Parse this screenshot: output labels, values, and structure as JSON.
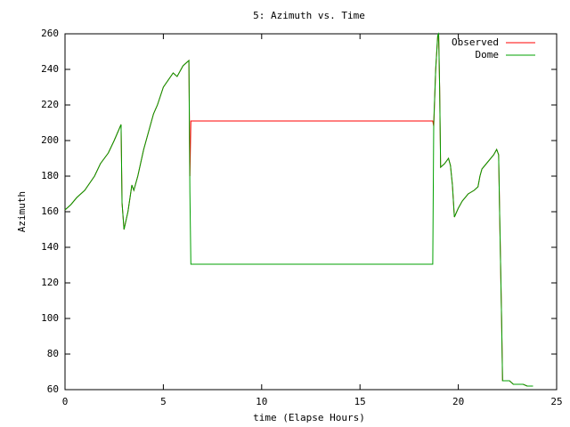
{
  "chart_data": {
    "type": "line",
    "title": "5: Azimuth vs. Time",
    "x_label": "time (Elapse Hours)",
    "y_label": "Azimuth",
    "x": [
      0,
      0.3,
      0.6,
      1,
      1.5,
      1.8,
      2.2,
      2.5,
      2.85,
      2.9,
      3.0,
      3.2,
      3.4,
      3.5,
      3.7,
      4,
      4.5,
      4.7,
      5,
      5.5,
      5.7,
      6.0,
      6.3,
      6.35,
      6.4,
      18.7,
      18.75,
      18.85,
      18.95,
      19.0,
      19.05,
      19.1,
      19.3,
      19.5,
      19.6,
      19.7,
      19.8,
      20,
      20.2,
      20.5,
      20.8,
      21,
      21.1,
      21.2,
      21.5,
      21.8,
      21.95,
      22.05,
      22.1,
      22.2,
      22.25,
      22.6,
      22.8,
      23.3,
      23.5,
      23.8
    ],
    "series": [
      {
        "name": "Observed",
        "color": "#ff0000",
        "values": [
          161,
          164,
          168,
          172,
          180,
          187,
          193,
          200,
          209,
          165,
          150,
          160,
          175,
          172,
          180,
          195,
          215,
          220,
          230,
          238,
          236,
          242,
          245,
          180,
          211,
          211,
          208,
          240,
          258,
          260,
          230,
          185,
          187,
          190,
          186,
          175,
          157,
          162,
          166,
          170,
          172,
          174,
          180,
          184,
          188,
          192,
          195,
          192,
          160,
          100,
          65,
          65,
          63,
          63,
          62,
          62
        ]
      },
      {
        "name": "Dome",
        "color": "#00a000",
        "values": [
          161,
          164,
          168,
          172,
          180,
          187,
          193,
          200,
          209,
          165,
          150,
          160,
          175,
          172,
          180,
          195,
          215,
          220,
          230,
          238,
          236,
          242,
          245,
          171,
          130.5,
          130.5,
          210,
          240,
          259,
          260,
          230,
          185,
          187,
          190,
          186,
          175,
          157,
          162,
          166,
          170,
          172,
          174,
          180,
          184,
          188,
          192,
          195,
          192,
          160,
          100,
          65,
          65,
          63,
          63,
          62,
          62
        ]
      }
    ],
    "xlim": [
      0,
      25
    ],
    "xticks": [
      0,
      5,
      10,
      15,
      20,
      25
    ],
    "ylim": [
      60,
      260
    ],
    "yticks": [
      60,
      80,
      100,
      120,
      140,
      160,
      180,
      200,
      220,
      240,
      260
    ],
    "legend": "top-right",
    "grid": false
  }
}
